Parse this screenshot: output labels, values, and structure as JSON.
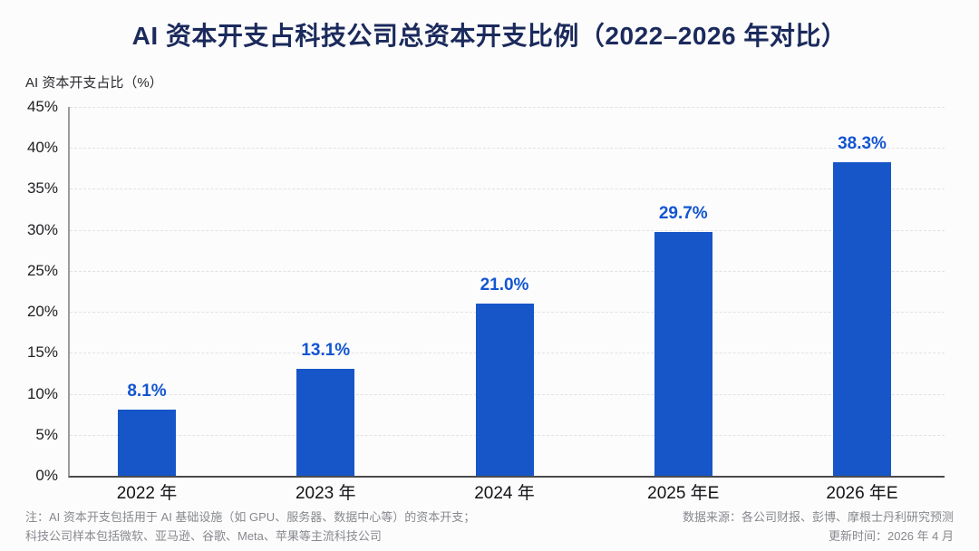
{
  "title": "AI 资本开支占科技公司总资本开支比例（2022–2026 年对比）",
  "chart_data": {
    "type": "bar",
    "title": "AI 资本开支占科技公司总资本开支比例（2022–2026 年对比）",
    "ylabel": "AI 资本开支占比（%）",
    "xlabel": "",
    "categories": [
      "2022 年",
      "2023 年",
      "2024 年",
      "2025 年E",
      "2026 年E"
    ],
    "values": [
      8.1,
      13.1,
      21.0,
      29.7,
      38.3
    ],
    "value_labels": [
      "8.1%",
      "13.1%",
      "21.0%",
      "29.7%",
      "38.3%"
    ],
    "ylim": [
      0,
      45
    ],
    "ytick_step": 5,
    "ytick_labels": [
      "0%",
      "5%",
      "10%",
      "15%",
      "20%",
      "25%",
      "30%",
      "35%",
      "40%",
      "45%"
    ],
    "grid": "horizontal-dashed",
    "legend": "none",
    "bar_color": "#1656c8",
    "value_label_color": "#1355d2"
  },
  "footnotes": {
    "note_prefix": "注：",
    "note_line1": "AI 资本开支包括用于 AI 基础设施（如 GPU、服务器、数据中心等）的资本开支；",
    "note_line2": "科技公司样本包括微软、亚马逊、谷歌、Meta、苹果等主流科技公司",
    "source_line": "数据来源：各公司财报、彭博、摩根士丹利研究预测",
    "update_line": "更新时间：2026 年 4 月"
  },
  "colors": {
    "background": "#fcfcfc",
    "title_text": "#1b2a5c",
    "bar": "#1656c8",
    "value_label": "#1355d2",
    "gridline": "#e2e2e6",
    "axis_line": "#4a4a4c",
    "footnote_text": "#87898e"
  }
}
